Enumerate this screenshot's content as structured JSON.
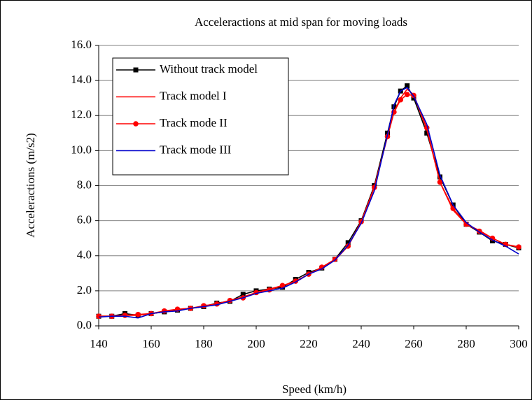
{
  "chart_data": {
    "type": "line",
    "title": "Acceleractions at mid span for moving loads",
    "xlabel": "Speed (km/h)",
    "ylabel": "Acceleractions (m/s2)",
    "x": [
      140,
      145,
      150,
      155,
      160,
      165,
      170,
      175,
      180,
      185,
      190,
      195,
      200,
      205,
      210,
      215,
      220,
      225,
      230,
      235,
      240,
      245,
      250,
      252.5,
      255,
      257.5,
      260,
      265,
      270,
      275,
      280,
      285,
      290,
      295,
      300
    ],
    "series": [
      {
        "name": "Without track model",
        "color": "#000000",
        "marker": "square",
        "values": [
          0.55,
          0.55,
          0.7,
          0.6,
          0.7,
          0.8,
          0.9,
          1.0,
          1.1,
          1.3,
          1.4,
          1.8,
          2.0,
          2.1,
          2.2,
          2.65,
          3.05,
          3.3,
          3.8,
          4.75,
          6.0,
          8.0,
          11.0,
          12.5,
          13.4,
          13.7,
          13.0,
          11.0,
          8.5,
          6.9,
          5.8,
          5.35,
          4.85,
          4.65,
          4.45
        ]
      },
      {
        "name": "Track model I",
        "color": "#ff0000",
        "values": [
          0.55,
          0.55,
          0.6,
          0.6,
          0.7,
          0.8,
          0.95,
          1.0,
          1.1,
          1.25,
          1.45,
          1.65,
          1.9,
          2.1,
          2.3,
          2.5,
          2.95,
          3.3,
          3.75,
          4.55,
          5.9,
          7.9,
          10.8,
          12.2,
          13.0,
          13.5,
          13.2,
          11.2,
          8.2,
          6.6,
          5.8,
          5.45,
          5.0,
          4.65,
          4.5
        ]
      },
      {
        "name": "Track mode II",
        "color": "#ff0000",
        "marker": "circle",
        "values": [
          0.55,
          0.55,
          0.6,
          0.65,
          0.7,
          0.85,
          0.95,
          1.0,
          1.15,
          1.25,
          1.45,
          1.6,
          1.9,
          2.05,
          2.3,
          2.55,
          2.95,
          3.35,
          3.8,
          4.55,
          5.95,
          7.9,
          10.8,
          12.2,
          12.9,
          13.2,
          13.15,
          11.3,
          8.2,
          6.7,
          5.8,
          5.4,
          5.0,
          4.65,
          4.5
        ]
      },
      {
        "name": "Track mode III",
        "color": "#0000cc",
        "values": [
          0.5,
          0.55,
          0.55,
          0.45,
          0.7,
          0.8,
          0.85,
          1.0,
          1.1,
          1.2,
          1.4,
          1.6,
          1.85,
          2.0,
          2.15,
          2.5,
          2.95,
          3.25,
          3.75,
          4.6,
          5.85,
          7.7,
          10.9,
          12.6,
          13.4,
          13.6,
          13.1,
          11.5,
          8.6,
          6.9,
          5.9,
          5.35,
          4.9,
          4.55,
          4.1
        ]
      }
    ],
    "xlim": [
      140,
      300
    ],
    "xticks": [
      140,
      160,
      180,
      200,
      220,
      240,
      260,
      280,
      300
    ],
    "ylim": [
      0,
      16
    ],
    "yticks": [
      {
        "value": 0,
        "label": "0.0"
      },
      {
        "value": 2,
        "label": "2.0"
      },
      {
        "value": 4,
        "label": "4.0"
      },
      {
        "value": 6,
        "label": "6.0"
      },
      {
        "value": 8,
        "label": "8.0"
      },
      {
        "value": 10,
        "label": "10.0"
      },
      {
        "value": 12,
        "label": "12.0"
      },
      {
        "value": 14,
        "label": "14.0"
      },
      {
        "value": 16,
        "label": "16.0"
      }
    ],
    "grid": true,
    "legend": "upper left"
  }
}
